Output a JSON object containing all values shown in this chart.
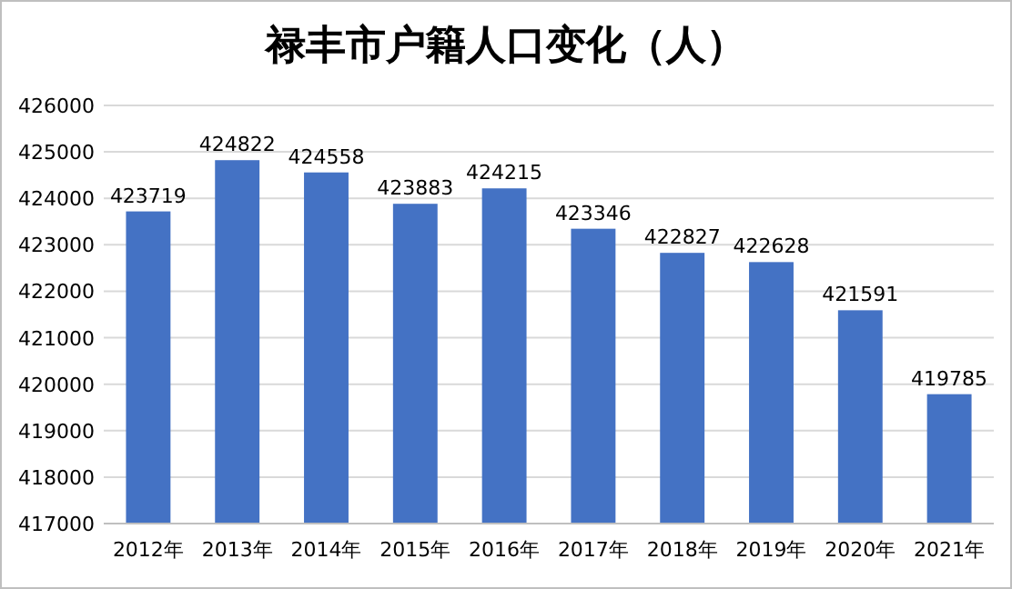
{
  "chart_data": {
    "type": "bar",
    "title": "禄丰市户籍人口变化（人）",
    "categories": [
      "2012年",
      "2013年",
      "2014年",
      "2015年",
      "2016年",
      "2017年",
      "2018年",
      "2019年",
      "2020年",
      "2021年"
    ],
    "values": [
      423719,
      424822,
      424558,
      423883,
      424215,
      423346,
      422827,
      422628,
      421591,
      419785
    ],
    "color": "#4472c4",
    "ylim": [
      417000,
      426000
    ],
    "yticks": [
      417000,
      418000,
      419000,
      420000,
      421000,
      422000,
      423000,
      424000,
      425000,
      426000
    ],
    "grid": "y",
    "data_labels": true
  }
}
